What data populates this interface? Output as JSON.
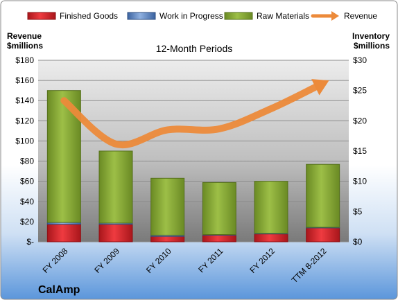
{
  "chart_data": {
    "type": "bar",
    "stacked": true,
    "subtitle": "12-Month Periods",
    "company": "CalAmp",
    "categories": [
      "FY 2008",
      "FY 2009",
      "FY 2010",
      "FY 2011",
      "FY 2012",
      "TTM 8-2012"
    ],
    "y_left": {
      "title_line1": "Revenue",
      "title_line2": "$millions",
      "range": [
        0,
        180
      ],
      "ticks": [
        0,
        20,
        40,
        60,
        80,
        100,
        120,
        140,
        160,
        180
      ],
      "tick_labels": [
        "$-",
        "$20",
        "$40",
        "$60",
        "$80",
        "$100",
        "$120",
        "$140",
        "$160",
        "$180"
      ]
    },
    "y_right": {
      "title_line1": "Inventory",
      "title_line2": "$millions",
      "range": [
        0,
        30
      ],
      "ticks": [
        0,
        5,
        10,
        15,
        20,
        25,
        30
      ],
      "tick_labels": [
        "$0",
        "$5",
        "$10",
        "$15",
        "$20",
        "$25",
        "$30"
      ]
    },
    "series": [
      {
        "name": "Finished Goods",
        "axis": "right",
        "color": "#e0252b",
        "values": [
          2.9,
          2.9,
          0.9,
          1.1,
          1.3,
          2.3
        ]
      },
      {
        "name": "Work in Progress",
        "axis": "right",
        "color": "#5a86c8",
        "values": [
          0.3,
          0.2,
          0.2,
          0.1,
          0.1,
          0.1
        ]
      },
      {
        "name": "Raw Materials",
        "axis": "right",
        "color": "#8fb13a",
        "values": [
          21.8,
          11.9,
          9.4,
          8.6,
          8.6,
          10.4
        ]
      },
      {
        "name": "Revenue",
        "axis": "left",
        "type": "line",
        "color": "#ec8a3a",
        "values": [
          140,
          97,
          111,
          112,
          132,
          157
        ]
      }
    ],
    "grid": true,
    "legend_position": "top"
  }
}
